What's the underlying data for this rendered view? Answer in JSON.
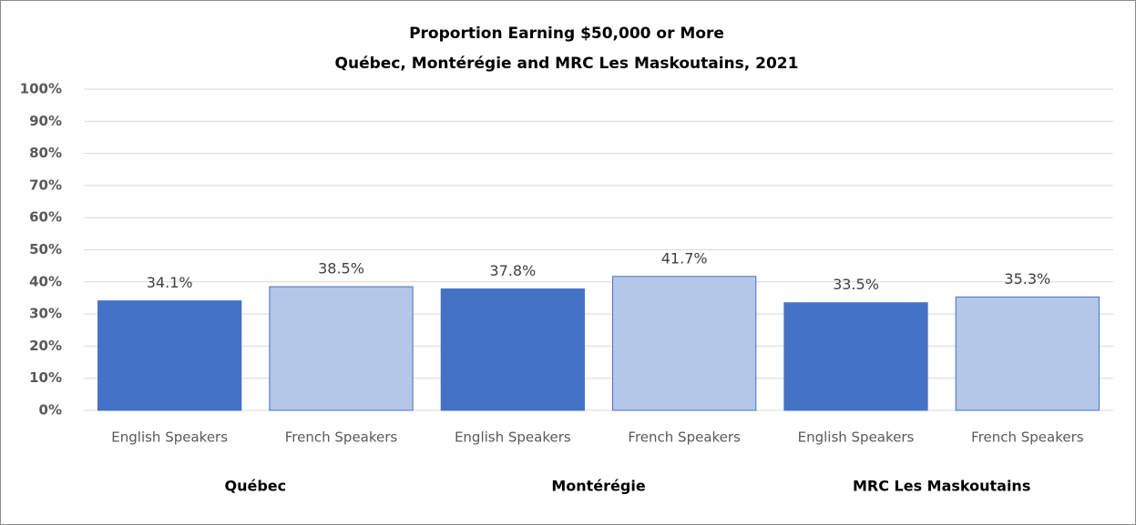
{
  "chart_data": {
    "type": "bar",
    "title": [
      "Proportion Earning $50,000 or More",
      "Québec, Montérégie and MRC Les Maskoutains, 2021"
    ],
    "categories": [
      "English Speakers",
      "French Speakers",
      "English Speakers",
      "French Speakers",
      "English Speakers",
      "French Speakers"
    ],
    "groups": [
      "Québec",
      "Montérégie",
      "MRC Les Maskoutains"
    ],
    "values": [
      34.1,
      38.5,
      37.8,
      41.7,
      33.5,
      35.3
    ],
    "value_labels": [
      "34.1%",
      "38.5%",
      "37.8%",
      "41.7%",
      "33.5%",
      "35.3%"
    ],
    "colors": [
      "#4472c4",
      "#b4c7e7",
      "#4472c4",
      "#b4c7e7",
      "#4472c4",
      "#b4c7e7"
    ],
    "ylim": [
      0,
      100
    ],
    "yticks": [
      {
        "value": 0,
        "label": "0%"
      },
      {
        "value": 10,
        "label": "10%"
      },
      {
        "value": 20,
        "label": "20%"
      },
      {
        "value": 30,
        "label": "30%"
      },
      {
        "value": 40,
        "label": "40%"
      },
      {
        "value": 50,
        "label": "50%"
      },
      {
        "value": 60,
        "label": "60%"
      },
      {
        "value": 70,
        "label": "70%"
      },
      {
        "value": 80,
        "label": "80%"
      },
      {
        "value": 90,
        "label": "90%"
      },
      {
        "value": 100,
        "label": "100%"
      }
    ],
    "grid": true
  }
}
